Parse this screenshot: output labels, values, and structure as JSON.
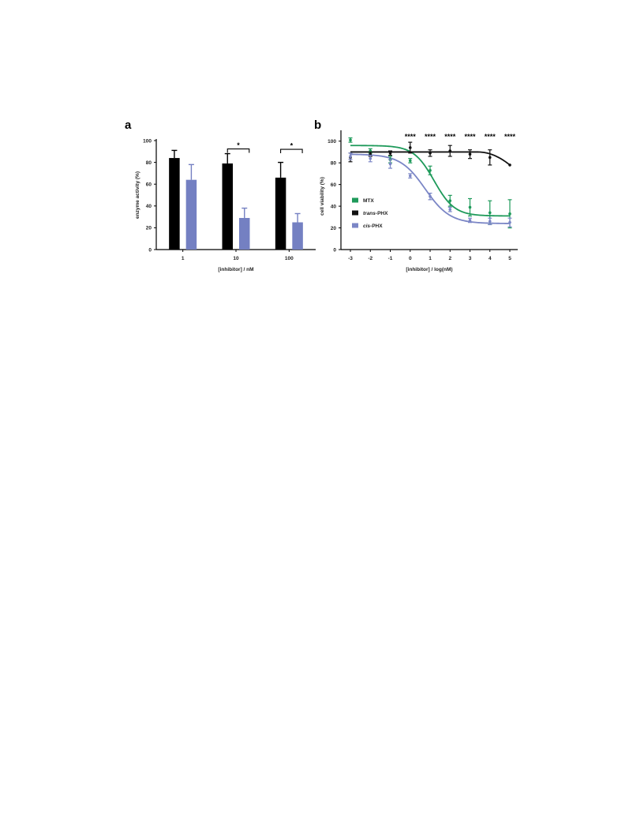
{
  "chart_data": [
    {
      "panel_label": "a",
      "type": "bar",
      "categories": [
        "1",
        "10",
        "100"
      ],
      "xlabel": "[inhibitor] / nM",
      "ylabel": "enzyme activity (%)",
      "ylim": [
        0,
        100
      ],
      "yticks": [
        "0",
        "20",
        "40",
        "60",
        "80",
        "100"
      ],
      "series": [
        {
          "values": [
            84,
            79,
            66
          ],
          "errors": [
            7,
            9,
            14
          ],
          "color": "#000000"
        },
        {
          "values": [
            64,
            29,
            25
          ],
          "errors": [
            14,
            9,
            8
          ],
          "color": "#7480c2"
        }
      ],
      "significance": [
        "",
        "*",
        "*"
      ]
    },
    {
      "panel_label": "b",
      "type": "line",
      "x": [
        -3,
        -2,
        -1,
        0,
        1,
        2,
        3,
        4,
        5
      ],
      "xticks": [
        "-3",
        "-2",
        "-1",
        "0",
        "1",
        "2",
        "3",
        "4",
        "5"
      ],
      "xlabel": "[inhibitor] / log(nM)",
      "ylabel": "cell viability (%)",
      "ylim": [
        0,
        110
      ],
      "yticks": [
        "0",
        "20",
        "40",
        "60",
        "80",
        "100"
      ],
      "significance": [
        "",
        "",
        "",
        "****",
        "****",
        "****",
        "****",
        "****",
        "****"
      ],
      "legend_position": "left-middle",
      "series": [
        {
          "name": "MTX",
          "color": "#1e9a5a",
          "values": [
            101,
            91,
            83,
            82,
            73,
            45,
            39,
            34,
            33
          ],
          "errors": [
            2,
            2,
            3,
            2,
            4,
            5,
            8,
            11,
            13
          ],
          "fit": {
            "top": 96,
            "bottom": 31,
            "logEC50": 1.2,
            "hill": 0.85
          }
        },
        {
          "name": "trans-PHX",
          "color": "#111111",
          "values": [
            85,
            88,
            89,
            94,
            89,
            91,
            88,
            85,
            78
          ],
          "errors": [
            4,
            2,
            2,
            5,
            3,
            5,
            4,
            7,
            0
          ],
          "fit": {
            "flat": 90,
            "dropStart": 3.4,
            "end": 78
          }
        },
        {
          "name": "cis-PHX",
          "color": "#7b86c6",
          "values": [
            86,
            84,
            79,
            68,
            49,
            37,
            27,
            26,
            25
          ],
          "errors": [
            3,
            3,
            4,
            2,
            3,
            2,
            2,
            3,
            4
          ],
          "fit": {
            "top": 88,
            "bottom": 24,
            "logEC50": 0.75,
            "hill": 0.7
          }
        }
      ]
    }
  ]
}
